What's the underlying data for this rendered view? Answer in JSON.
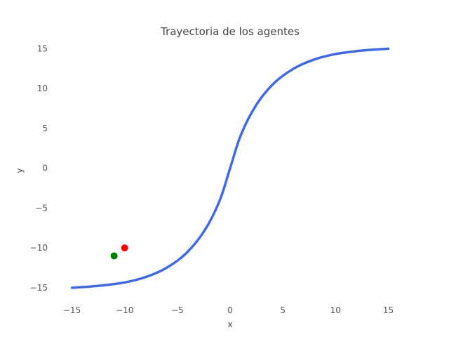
{
  "chart_data": {
    "type": "line",
    "title": "Trayectoria de los agentes",
    "xlabel": "x",
    "ylabel": "y",
    "xlim": [
      -16.5,
      16.5
    ],
    "ylim": [
      -16.6,
      16.0
    ],
    "xticks": [
      -15,
      -10,
      -5,
      0,
      5,
      10,
      15
    ],
    "xtick_labels": [
      "−15",
      "−10",
      "−5",
      "0",
      "5",
      "10",
      "15"
    ],
    "yticks": [
      -15,
      -10,
      -5,
      0,
      5,
      10,
      15
    ],
    "ytick_labels": [
      "−15",
      "−10",
      "−5",
      "0",
      "5",
      "10",
      "15"
    ],
    "grid": false,
    "series": [
      {
        "kind": "line",
        "color": "#4169e1",
        "x": [
          15,
          14.76,
          14.07,
          12.97,
          11.53,
          9.83,
          7.96,
          6.04,
          4.17,
          2.47,
          1.03,
          0,
          -1.03,
          -2.47,
          -4.17,
          -6.04,
          -7.96,
          -9.83,
          -11.53,
          -12.97,
          -14.07,
          -14.76,
          -15,
          -14.76,
          -14.07,
          -12.97,
          -11.53,
          -9.83,
          -7.96,
          -6.04,
          -4.17,
          -2.47,
          -1.03,
          0,
          1.03,
          2.47,
          4.17,
          6.04,
          7.96,
          9.83,
          11.53,
          12.97,
          14.07,
          14.76,
          15
        ],
        "y": [
          15,
          14.98,
          14.92,
          14.82,
          14.62,
          14.29,
          13.64,
          12.51,
          10.68,
          7.92,
          4.2,
          0,
          -4.2,
          -7.92,
          -10.68,
          -12.51,
          -13.64,
          -14.29,
          -14.62,
          -14.82,
          -14.92,
          -14.98,
          -15,
          -14.98,
          -14.92,
          -14.82,
          -14.62,
          -14.29,
          -13.64,
          -12.51,
          -10.68,
          -7.92,
          -4.2,
          0,
          4.2,
          7.92,
          10.68,
          12.51,
          13.64,
          14.29,
          14.62,
          14.82,
          14.92,
          14.98,
          15
        ]
      },
      {
        "kind": "point",
        "color": "#ff0000",
        "x": [
          -10
        ],
        "y": [
          -10
        ]
      },
      {
        "kind": "point",
        "color": "#008000",
        "x": [
          -11
        ],
        "y": [
          -11
        ]
      }
    ]
  }
}
